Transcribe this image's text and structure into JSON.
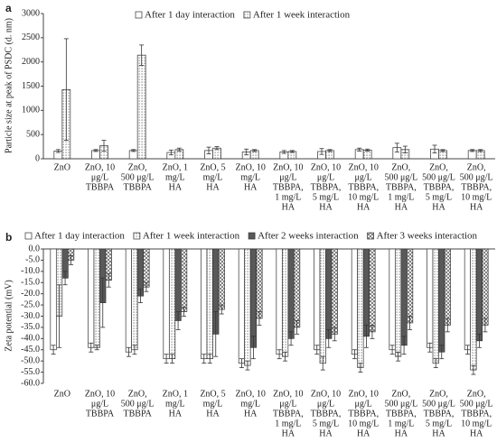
{
  "chart_data": [
    {
      "type": "bar",
      "panel_label": "a",
      "y_label": "Particle size at peak of PSDC (d. nm)",
      "legend": "top",
      "categories": [
        [
          "ZnO"
        ],
        [
          "ZnO, 10",
          "μg/L",
          "TBBPA"
        ],
        [
          "ZnO,",
          "500 μg/L",
          "TBBPA"
        ],
        [
          "ZnO, 1",
          "mg/L",
          "HA"
        ],
        [
          "ZnO, 5",
          "mg/L",
          "HA"
        ],
        [
          "ZnO, 10",
          "mg/L",
          "HA"
        ],
        [
          "ZnO, 10",
          "μg/L",
          "TBBPA,",
          "1 mg/L",
          "HA"
        ],
        [
          "ZnO, 10",
          "μg/L",
          "TBBPA,",
          "5 mg/L",
          "HA"
        ],
        [
          "ZnO, 10",
          "μg/L",
          "TBBPA,",
          "10 mg/L",
          "HA"
        ],
        [
          "ZnO,",
          "500 μg/L",
          "TBBPA,",
          "1 mg/L",
          "HA"
        ],
        [
          "ZnO,",
          "500 μg/L",
          "TBBPA,",
          "5 mg/L",
          "HA"
        ],
        [
          "ZnO,",
          "500 μg/L",
          "TBBPA,",
          "10 mg/L",
          "HA"
        ]
      ],
      "series": [
        {
          "name": "After 1 day interaction",
          "color": "#ffffff",
          "pattern": "none",
          "values": [
            160,
            170,
            170,
            130,
            170,
            140,
            140,
            150,
            190,
            230,
            200,
            170
          ],
          "errors": [
            30,
            20,
            20,
            50,
            70,
            60,
            30,
            60,
            30,
            90,
            80,
            20
          ]
        },
        {
          "name": "After 1 week interaction",
          "color": "#ffffff",
          "pattern": "dots",
          "values": [
            1430,
            270,
            2140,
            190,
            220,
            170,
            150,
            170,
            180,
            190,
            170,
            170
          ],
          "errors": [
            1050,
            110,
            210,
            30,
            30,
            20,
            20,
            20,
            20,
            70,
            20,
            20
          ]
        }
      ],
      "ylim": [
        0,
        3000
      ],
      "yticks": [
        0,
        500,
        1000,
        1500,
        2000,
        2500,
        3000
      ]
    },
    {
      "type": "bar",
      "panel_label": "b",
      "y_label": "Zeta potential (mV)",
      "legend": "top",
      "categories": [
        [
          "ZnO"
        ],
        [
          "ZnO, 10",
          "μg/L",
          "TBBPA"
        ],
        [
          "ZnO,",
          "500 μg/L",
          "TBBPA"
        ],
        [
          "ZnO, 1",
          "mg/L",
          "HA"
        ],
        [
          "ZnO, 5",
          "mg/L",
          "HA"
        ],
        [
          "ZnO, 10",
          "mg/L",
          "HA"
        ],
        [
          "ZnO, 10",
          "μg/L",
          "TBBPA,",
          "1 mg/L",
          "HA"
        ],
        [
          "ZnO, 10",
          "μg/L",
          "TBBPA,",
          "5 mg/L",
          "HA"
        ],
        [
          "ZnO, 10",
          "μg/L",
          "TBBPA,",
          "10 mg/L",
          "HA"
        ],
        [
          "ZnO,",
          "500 μg/L",
          "TBBPA,",
          "1 mg/L",
          "HA"
        ],
        [
          "ZnO,",
          "500 μg/L",
          "TBBPA,",
          "5 mg/L",
          "HA"
        ],
        [
          "ZnO,",
          "500 μg/L",
          "TBBPA,",
          "10 mg/L",
          "HA"
        ]
      ],
      "series": [
        {
          "name": "After 1 day interaction",
          "color": "#ffffff",
          "pattern": "none",
          "values": [
            -45,
            -44,
            -46,
            -49,
            -49,
            -51,
            -47,
            -45,
            -47,
            -45,
            -44,
            -45
          ],
          "errors": [
            2,
            2,
            2,
            2,
            2,
            2,
            2,
            2,
            2,
            2,
            2,
            2
          ]
        },
        {
          "name": "After 1 week interaction",
          "color": "#ffffff",
          "pattern": "dots",
          "values": [
            -30,
            -44,
            -45,
            -49,
            -49,
            -52,
            -48,
            -51,
            -53,
            -48,
            -51,
            -54
          ],
          "errors": [
            14,
            1,
            2,
            2,
            2,
            2,
            2,
            3,
            2,
            2,
            2,
            2
          ]
        },
        {
          "name": "After 2 weeks interaction",
          "color": "#595959",
          "pattern": "none",
          "values": [
            -13,
            -24,
            -21,
            -32,
            -38,
            -44,
            -40,
            -40,
            -39,
            -43,
            -46,
            -41
          ],
          "errors": [
            3,
            11,
            3,
            4,
            10,
            5,
            3,
            4,
            5,
            4,
            3,
            3
          ]
        },
        {
          "name": "After 3 weeks interaction",
          "color": "#ffffff",
          "pattern": "hatch",
          "values": [
            -5,
            -14,
            -17,
            -28,
            -27,
            -31,
            -35,
            -38,
            -37,
            -33,
            -34,
            -34
          ],
          "errors": [
            2,
            3,
            2,
            2,
            2,
            3,
            3,
            3,
            3,
            3,
            3,
            3
          ]
        }
      ],
      "ylim": [
        -60,
        0
      ],
      "yticks": [
        {
          "value": -60,
          "label": "-60.0"
        },
        {
          "value": -55,
          "label": "-55.0"
        },
        {
          "value": -50,
          "label": "-50.0"
        },
        {
          "value": -45,
          "label": "-45.0"
        },
        {
          "value": -40,
          "label": "-40.0"
        },
        {
          "value": -35,
          "label": "-35.0"
        },
        {
          "value": -30,
          "label": "-30.0"
        },
        {
          "value": -25,
          "label": "-25.0"
        },
        {
          "value": -20,
          "label": "-20.0"
        },
        {
          "value": -15,
          "label": "-15.0"
        },
        {
          "value": -10,
          "label": "-10.0"
        },
        {
          "value": -5,
          "label": "-5.0"
        },
        {
          "value": 0,
          "label": "0.0"
        }
      ]
    }
  ]
}
